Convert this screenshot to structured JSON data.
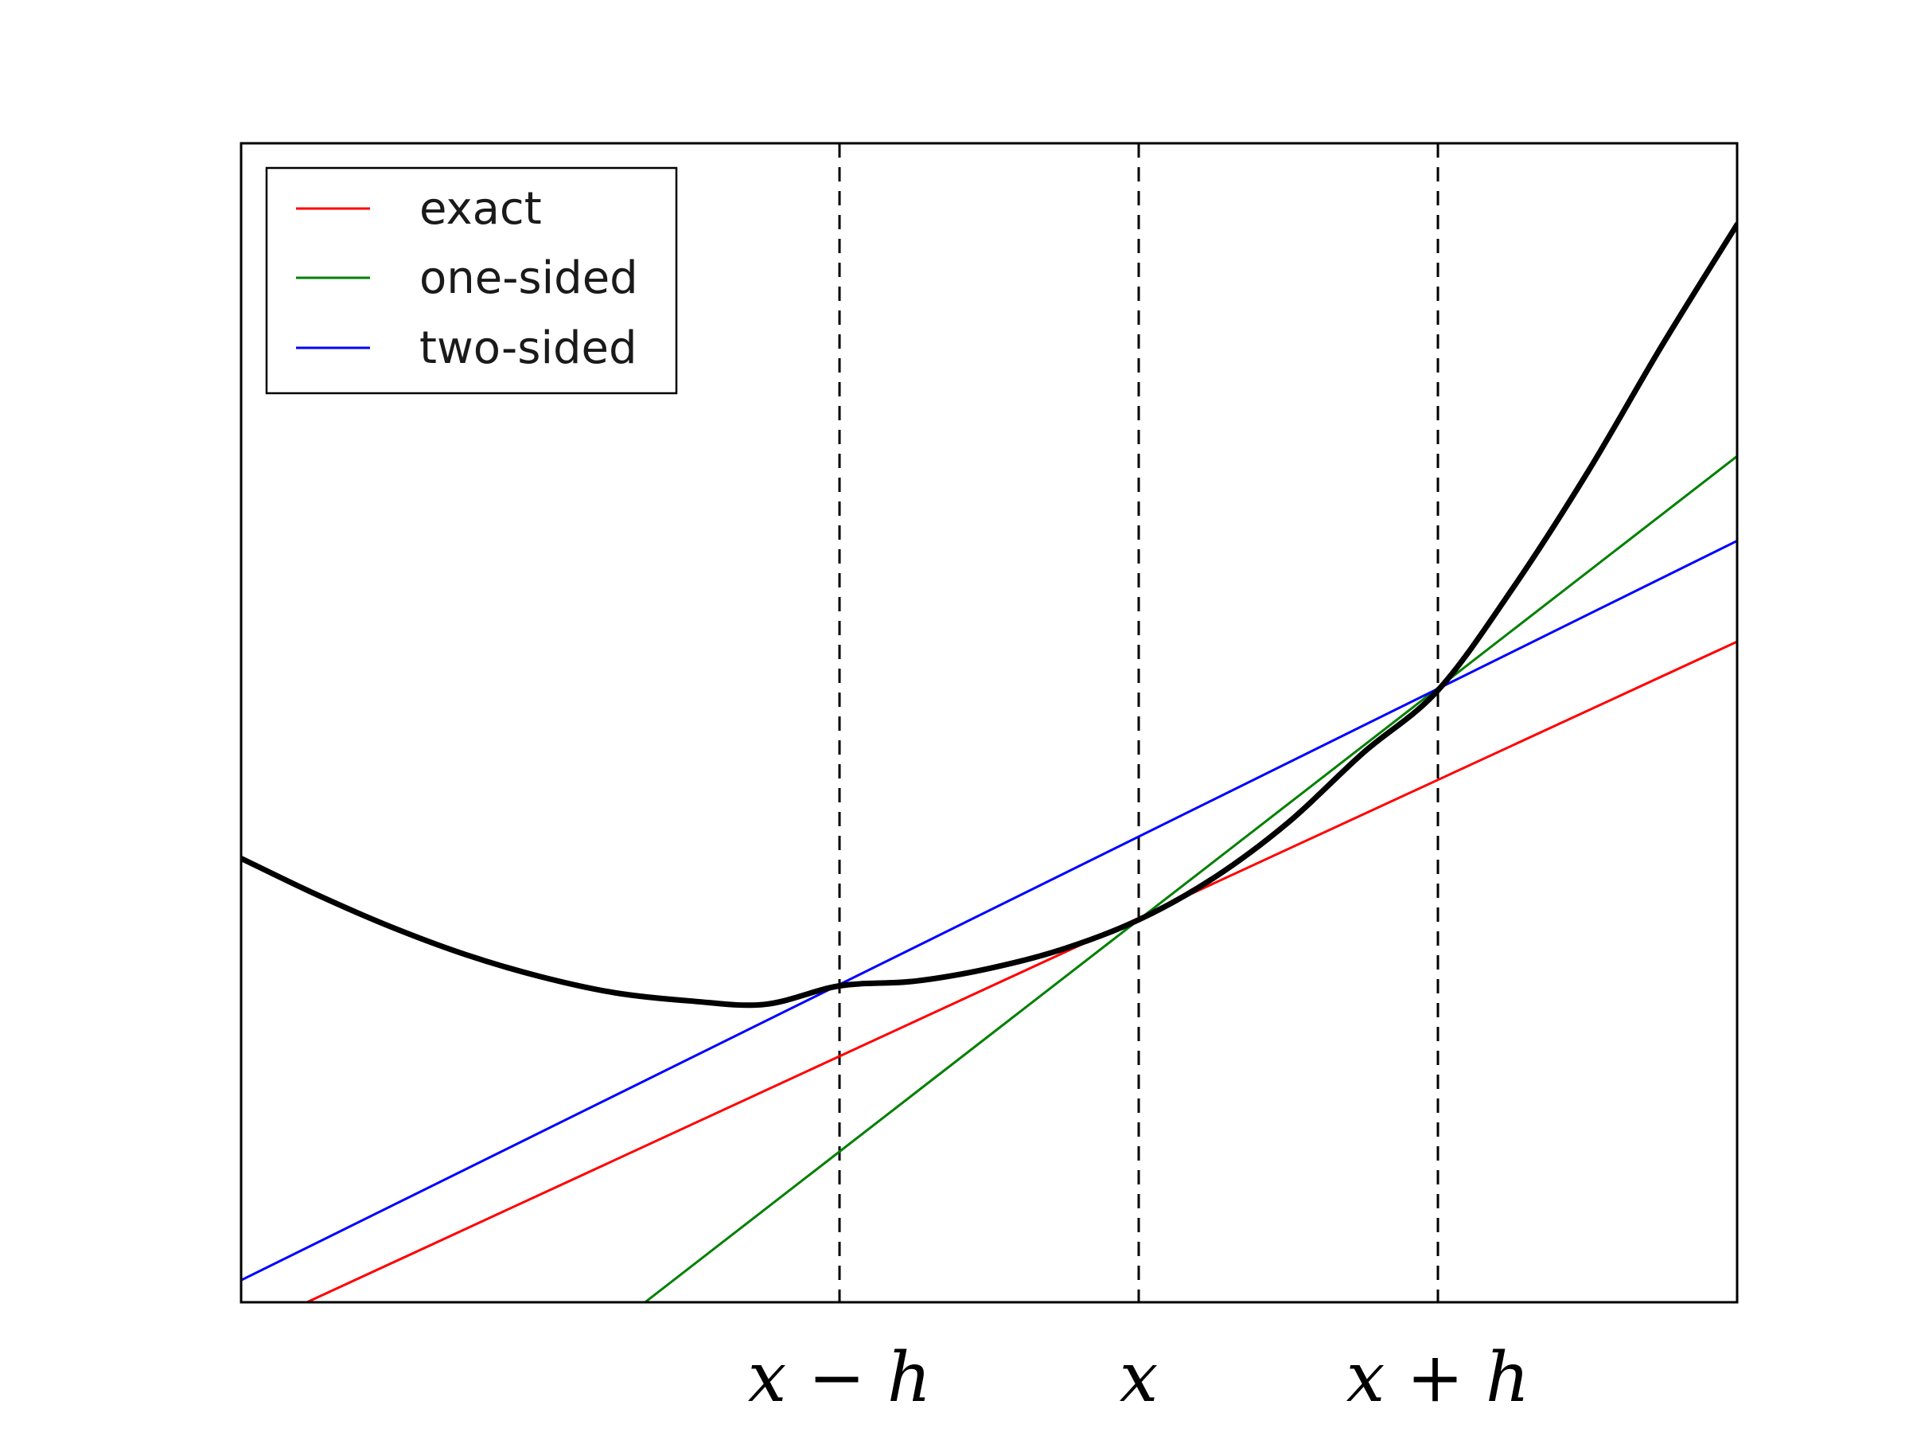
{
  "chart_data": {
    "type": "line",
    "title": "",
    "xlabel": "",
    "ylabel": "",
    "xlim": [
      -2,
      3
    ],
    "ylim": [
      0,
      10
    ],
    "grid": false,
    "legend": {
      "placement": "top-left",
      "entries": [
        {
          "name": "exact",
          "color": "#ff0000"
        },
        {
          "name": "one-sided",
          "color": "#008000"
        },
        {
          "name": "two-sided",
          "color": "#0000ff"
        }
      ]
    },
    "x_ticks": [
      {
        "x": 0,
        "label": "x − h"
      },
      {
        "x": 1,
        "label": "x"
      },
      {
        "x": 2,
        "label": "x + h"
      }
    ],
    "vertical_reference_lines": [
      0,
      1,
      2
    ],
    "curve": {
      "color": "#000000",
      "points": [
        [
          -2.0,
          3.83
        ],
        [
          -1.75,
          3.52
        ],
        [
          -1.5,
          3.24
        ],
        [
          -1.25,
          3.0
        ],
        [
          -1.0,
          2.81
        ],
        [
          -0.75,
          2.67
        ],
        [
          -0.5,
          2.6
        ],
        [
          -0.25,
          2.57
        ],
        [
          0.0,
          2.73
        ],
        [
          0.25,
          2.77
        ],
        [
          0.5,
          2.88
        ],
        [
          0.75,
          3.05
        ],
        [
          1.0,
          3.3
        ],
        [
          1.25,
          3.66
        ],
        [
          1.5,
          4.14
        ],
        [
          1.75,
          4.74
        ],
        [
          2.0,
          5.28
        ],
        [
          2.25,
          6.16
        ],
        [
          2.5,
          7.16
        ],
        [
          2.75,
          8.26
        ],
        [
          3.0,
          9.3
        ]
      ]
    },
    "series": [
      {
        "name": "exact",
        "color": "#ff0000",
        "x": [
          -1.78,
          3.0
        ],
        "y": [
          0.0,
          5.7
        ]
      },
      {
        "name": "one-sided",
        "color": "#008000",
        "x": [
          -0.65,
          3.0
        ],
        "y": [
          0.0,
          7.3
        ]
      },
      {
        "name": "two-sided",
        "color": "#0000ff",
        "x": [
          -2.0,
          3.0
        ],
        "y": [
          0.19,
          6.57
        ]
      }
    ]
  }
}
